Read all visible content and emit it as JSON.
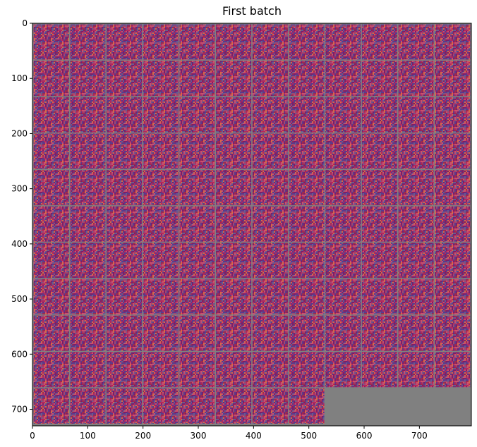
{
  "chart_data": {
    "type": "heatmap",
    "title": "First batch",
    "xlabel": "",
    "ylabel": "",
    "xlim": [
      0,
      794
    ],
    "ylim": [
      730,
      0
    ],
    "xticks": [
      0,
      100,
      200,
      300,
      400,
      500,
      600,
      700
    ],
    "yticks": [
      0,
      100,
      200,
      300,
      400,
      500,
      600,
      700
    ],
    "grid": false,
    "image": {
      "content": "grid of noise tiles from the first batch",
      "tile_rows": 11,
      "tile_cols": 12,
      "tiles_filled": 128,
      "tile_size": 64,
      "tile_padding": 2,
      "padding_color": "#808080",
      "empty_color": "#808080",
      "noise_palette": [
        "#b2285e",
        "#7a1f6a",
        "#c8506f",
        "#5a3a8c",
        "#d26a4a",
        "#9c2a50",
        "#6a5a90",
        "#a04870"
      ]
    }
  }
}
